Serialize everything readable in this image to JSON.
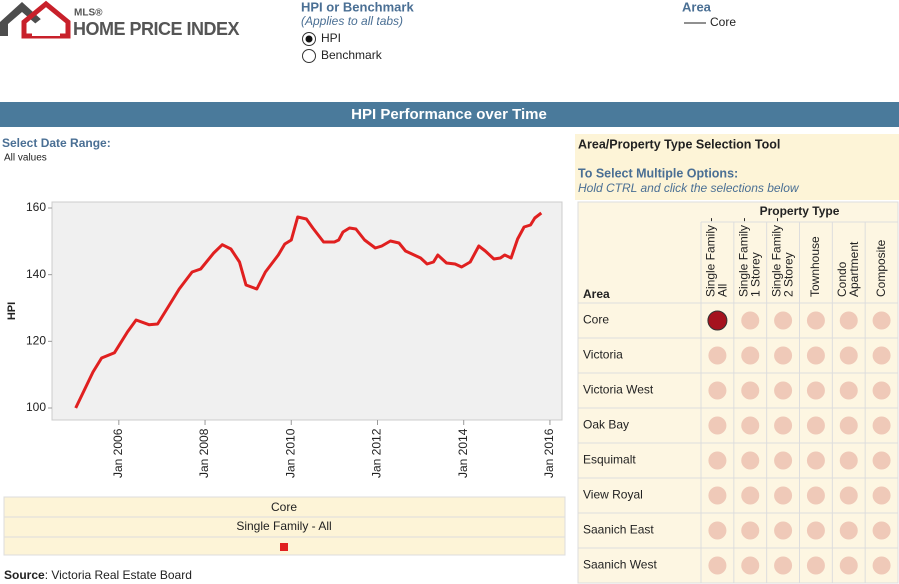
{
  "header": {
    "brand": "MLS®",
    "product": "HOME PRICE INDEX",
    "measure": {
      "title": "HPI or Benchmark",
      "note": "(Applies to all tabs)",
      "options": [
        "HPI",
        "Benchmark"
      ],
      "selected_index": 0
    },
    "area": {
      "title": "Area",
      "value": "Core"
    }
  },
  "banner": "HPI Performance over Time",
  "date_range": {
    "label": "Select Date Range:",
    "value": "All values"
  },
  "chart_data": {
    "type": "line",
    "ylabel": "HPI",
    "x": [
      2005.0,
      2005.4,
      2005.6,
      2005.9,
      2006.2,
      2006.4,
      2006.7,
      2006.9,
      2007.2,
      2007.4,
      2007.7,
      2007.9,
      2008.2,
      2008.4,
      2008.6,
      2008.8,
      2008.95,
      2009.2,
      2009.4,
      2009.7,
      2009.85,
      2010.0,
      2010.15,
      2010.35,
      2010.5,
      2010.75,
      2011.0,
      2011.1,
      2011.2,
      2011.35,
      2011.5,
      2011.7,
      2011.95,
      2012.1,
      2012.3,
      2012.5,
      2012.65,
      2012.8,
      2013.0,
      2013.15,
      2013.3,
      2013.4,
      2013.6,
      2013.8,
      2013.95,
      2014.15,
      2014.35,
      2014.5,
      2014.7,
      2014.85,
      2014.95,
      2015.1,
      2015.25,
      2015.4,
      2015.55,
      2015.65,
      2015.8
    ],
    "series": [
      {
        "name": "Core",
        "color": "#e02020",
        "values": [
          100,
          110.8,
          115,
          116.6,
          122.8,
          126.4,
          125,
          125.2,
          131.5,
          135.7,
          140.8,
          141.7,
          146.5,
          149,
          147.7,
          143.8,
          136.9,
          135.7,
          140.8,
          145.9,
          149.2,
          150.4,
          157.3,
          156.7,
          154,
          149.8,
          149.8,
          150.4,
          152.8,
          154,
          153.7,
          150.4,
          148,
          148.6,
          150.1,
          149.5,
          147.1,
          146.2,
          145,
          143.2,
          143.8,
          145.9,
          143.5,
          143.2,
          142.3,
          143.8,
          148.6,
          147.1,
          144.7,
          145,
          145.9,
          145,
          150.7,
          154.3,
          154.9,
          157,
          158.5
        ]
      }
    ],
    "xlim": [
      2004.45,
      2016.28
    ],
    "xticks": [
      {
        "value": 2006,
        "label": "Jan 2006"
      },
      {
        "value": 2008,
        "label": "Jan 2008"
      },
      {
        "value": 2010,
        "label": "Jan 2010"
      },
      {
        "value": 2012,
        "label": "Jan 2012"
      },
      {
        "value": 2014,
        "label": "Jan 2014"
      },
      {
        "value": 2016,
        "label": "Jan 2016"
      }
    ],
    "ylim": [
      96.4,
      161.8
    ],
    "yticks": [
      100,
      120,
      140,
      160
    ],
    "grid": false
  },
  "chart_legend": {
    "property_type": "Single Family - All"
  },
  "source": {
    "label": "Source",
    "text": ": Victoria Real Estate Board"
  },
  "selector": {
    "title": "Area/Property Type Selection Tool",
    "instructions_title": "To Select Multiple Options:",
    "instructions": "Hold CTRL and click the selections below",
    "column_group": "Property Type",
    "area_header": "Area",
    "property_types": [
      [
        "Single Family -",
        "All"
      ],
      [
        "Single Family -",
        "1 Storey"
      ],
      [
        "Single Family -",
        "2 Storey"
      ],
      [
        "Townhouse"
      ],
      [
        "Condo",
        "Apartment"
      ],
      [
        "Composite"
      ]
    ],
    "areas": [
      "Core",
      "Victoria",
      "Victoria West",
      "Oak Bay",
      "Esquimalt",
      "View Royal",
      "Saanich East",
      "Saanich West"
    ],
    "selected": {
      "area": 0,
      "property_type": 0
    }
  }
}
